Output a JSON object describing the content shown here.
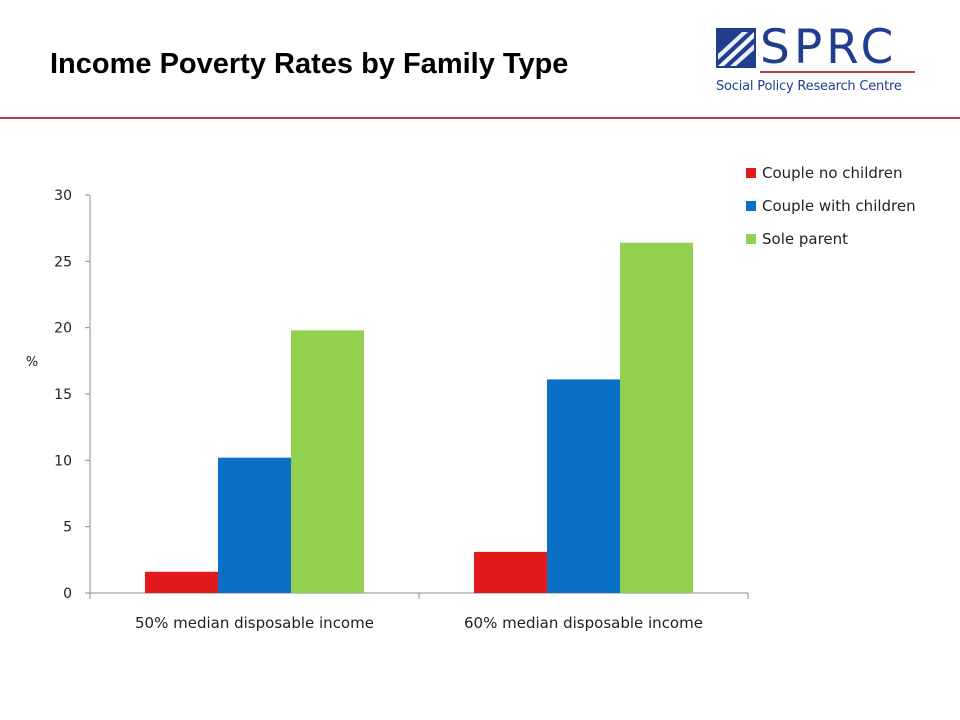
{
  "title": "Income Poverty Rates by Family Type",
  "logo": {
    "name": "SPRC",
    "subtitle": "Social Policy Research Centre"
  },
  "chart_data": {
    "type": "bar",
    "categories": [
      "50% median disposable income",
      "60% median disposable income"
    ],
    "series": [
      {
        "name": "Couple no children",
        "values": [
          1.6,
          3.1
        ],
        "color": "#e31a1c"
      },
      {
        "name": "Couple with children",
        "values": [
          10.2,
          16.1
        ],
        "color": "#0a70c6"
      },
      {
        "name": "Sole parent",
        "values": [
          19.8,
          26.4
        ],
        "color": "#92d050"
      }
    ],
    "ylabel": "%",
    "ylim": [
      0,
      30
    ],
    "yticks": [
      0,
      5,
      10,
      15,
      20,
      25,
      30
    ],
    "grid": false,
    "legend": "top-right"
  }
}
